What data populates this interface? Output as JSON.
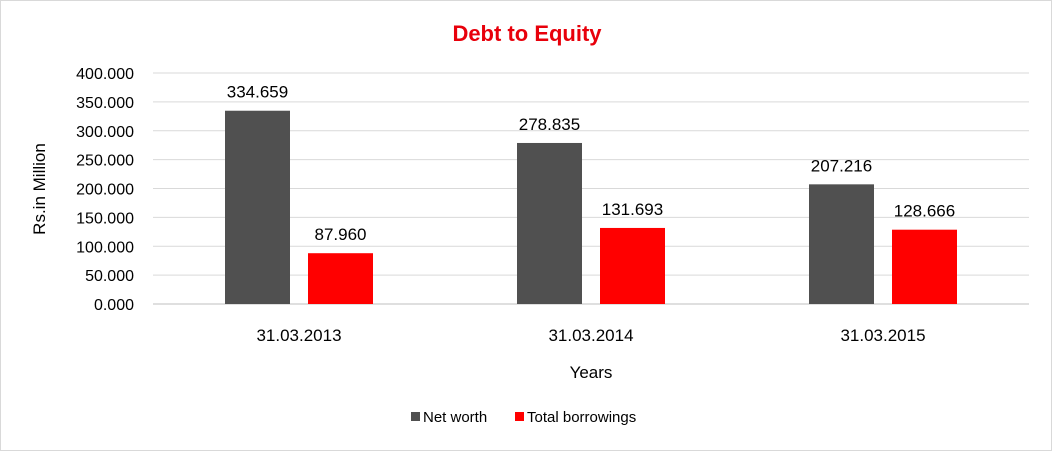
{
  "chart_data": {
    "type": "bar",
    "title": "Debt to Equity",
    "title_color": "#e8000b",
    "xlabel": "Years",
    "ylabel": "Rs.in Million",
    "categories": [
      "31.03.2013",
      "31.03.2014",
      "31.03.2015"
    ],
    "ylim": [
      0,
      400
    ],
    "yticks": [
      "0.000",
      "50.000",
      "100.000",
      "150.000",
      "200.000",
      "250.000",
      "300.000",
      "350.000",
      "400.000"
    ],
    "ytick_values": [
      0,
      50,
      100,
      150,
      200,
      250,
      300,
      350,
      400
    ],
    "grid": true,
    "legend_position": "bottom",
    "series": [
      {
        "name": "Net worth",
        "color": "#505050",
        "values": [
          334.659,
          278.835,
          207.216
        ],
        "labels": [
          "334.659",
          "278.835",
          "207.216"
        ]
      },
      {
        "name": "Total borrowings",
        "color": "#ff0000",
        "values": [
          87.96,
          131.693,
          128.666
        ],
        "labels": [
          "87.960",
          "131.693",
          "128.666"
        ]
      }
    ]
  }
}
